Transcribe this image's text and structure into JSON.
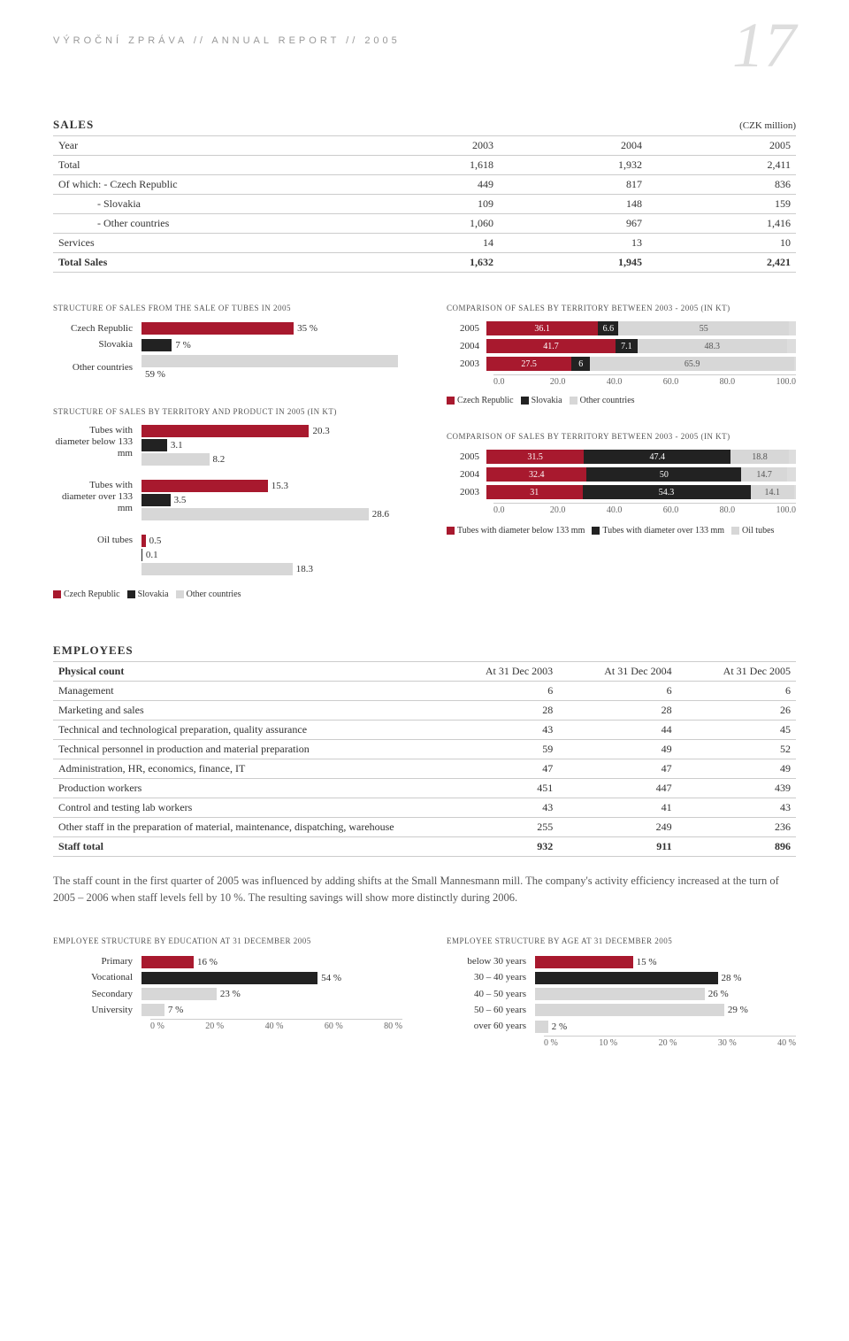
{
  "head": {
    "running": "VÝROČNÍ ZPRÁVA // ANNUAL REPORT // 2005",
    "page": "17"
  },
  "colors": {
    "red": "#a8192e",
    "black": "#222222",
    "grey": "#d7d7d7",
    "axis": "#cccccc"
  },
  "sales_table": {
    "title": "SALES",
    "unit": "(CZK million)",
    "head": [
      "Year",
      "2003",
      "2004",
      "2005"
    ],
    "rows": [
      {
        "label": "Total",
        "v": [
          "1,618",
          "1,932",
          "2,411"
        ],
        "bold": false
      },
      {
        "label": "Of which:  - Czech Republic",
        "v": [
          "449",
          "817",
          "836"
        ],
        "bold": false
      },
      {
        "label": "- Slovakia",
        "v": [
          "109",
          "148",
          "159"
        ],
        "bold": false,
        "indent": true
      },
      {
        "label": "- Other countries",
        "v": [
          "1,060",
          "967",
          "1,416"
        ],
        "bold": false,
        "indent": true
      },
      {
        "label": "Services",
        "v": [
          "14",
          "13",
          "10"
        ],
        "bold": false
      },
      {
        "label": "Total Sales",
        "v": [
          "1,632",
          "1,945",
          "2,421"
        ],
        "bold": true
      }
    ]
  },
  "chart1": {
    "title": "STRUCTURE OF SALES FROM THE SALE OF TUBES IN 2005",
    "rows": [
      {
        "label": "Czech Republic",
        "value": 35,
        "text": "35 %",
        "color": "#a8192e"
      },
      {
        "label": "Slovakia",
        "value": 7,
        "text": "7 %",
        "color": "#222222"
      },
      {
        "label": "Other countries",
        "value": 59,
        "text": "59 %",
        "color": "#d7d7d7"
      }
    ],
    "max": 60
  },
  "chart2": {
    "title": "STRUCTURE OF SALES BY TERRITORY AND PRODUCT IN 2005 (IN KT)",
    "groups": [
      {
        "label": "Tubes with diameter below 133 mm",
        "bars": [
          {
            "value": 20.3,
            "text": "20.3",
            "color": "#a8192e"
          },
          {
            "value": 3.1,
            "text": "3.1",
            "color": "#222222"
          },
          {
            "value": 8.2,
            "text": "8.2",
            "color": "#d7d7d7"
          }
        ]
      },
      {
        "label": "Tubes with diameter over 133 mm",
        "bars": [
          {
            "value": 15.3,
            "text": "15.3",
            "color": "#a8192e"
          },
          {
            "value": 3.5,
            "text": "3.5",
            "color": "#222222"
          },
          {
            "value": 28.6,
            "text": "28.6",
            "color": "#d7d7d7"
          }
        ]
      },
      {
        "label": "Oil tubes",
        "bars": [
          {
            "value": 0.5,
            "text": "0.5",
            "color": "#a8192e"
          },
          {
            "value": 0.1,
            "text": "0.1",
            "color": "#222222"
          },
          {
            "value": 18.3,
            "text": "18.3",
            "color": "#d7d7d7"
          }
        ]
      }
    ],
    "max": 30,
    "legend": [
      {
        "color": "#a8192e",
        "label": "Czech Republic"
      },
      {
        "color": "#222222",
        "label": "Slovakia"
      },
      {
        "color": "#d7d7d7",
        "label": "Other countries"
      }
    ]
  },
  "chart3": {
    "title": "COMPARISON OF SALES BY TERRITORY BETWEEN 2003 - 2005 (IN KT)",
    "rows": [
      {
        "label": "2005",
        "segs": [
          {
            "v": 36.1,
            "t": "36.1",
            "c": "#a8192e"
          },
          {
            "v": 6.6,
            "t": "6.6",
            "c": "#222222"
          },
          {
            "v": 55,
            "t": "55",
            "c": "#d7d7d7",
            "light": true
          }
        ]
      },
      {
        "label": "2004",
        "segs": [
          {
            "v": 41.7,
            "t": "41.7",
            "c": "#a8192e"
          },
          {
            "v": 7.1,
            "t": "7.1",
            "c": "#222222"
          },
          {
            "v": 48.3,
            "t": "48.3",
            "c": "#d7d7d7",
            "light": true
          }
        ]
      },
      {
        "label": "2003",
        "segs": [
          {
            "v": 27.5,
            "t": "27.5",
            "c": "#a8192e"
          },
          {
            "v": 6,
            "t": "6",
            "c": "#222222"
          },
          {
            "v": 65.9,
            "t": "65.9",
            "c": "#d7d7d7",
            "light": true
          }
        ]
      }
    ],
    "axis": [
      "0.0",
      "20.0",
      "40.0",
      "60.0",
      "80.0",
      "100.0"
    ],
    "max": 100,
    "legend": [
      {
        "color": "#a8192e",
        "label": "Czech Republic"
      },
      {
        "color": "#222222",
        "label": "Slovakia"
      },
      {
        "color": "#d7d7d7",
        "label": "Other countries"
      }
    ]
  },
  "chart4": {
    "title": "COMPARISON OF SALES BY TERRITORY BETWEEN 2003 - 2005 (IN KT)",
    "rows": [
      {
        "label": "2005",
        "segs": [
          {
            "v": 31.5,
            "t": "31.5",
            "c": "#a8192e"
          },
          {
            "v": 47.4,
            "t": "47.4",
            "c": "#222222"
          },
          {
            "v": 18.8,
            "t": "18.8",
            "c": "#d7d7d7",
            "light": true
          }
        ]
      },
      {
        "label": "2004",
        "segs": [
          {
            "v": 32.4,
            "t": "32.4",
            "c": "#a8192e"
          },
          {
            "v": 50,
            "t": "50",
            "c": "#222222"
          },
          {
            "v": 14.7,
            "t": "14.7",
            "c": "#d7d7d7",
            "light": true
          }
        ]
      },
      {
        "label": "2003",
        "segs": [
          {
            "v": 31,
            "t": "31",
            "c": "#a8192e"
          },
          {
            "v": 54.3,
            "t": "54.3",
            "c": "#222222"
          },
          {
            "v": 14.1,
            "t": "14.1",
            "c": "#d7d7d7",
            "light": true
          }
        ]
      }
    ],
    "axis": [
      "0.0",
      "20.0",
      "40.0",
      "60.0",
      "80.0",
      "100.0"
    ],
    "max": 100,
    "legend": [
      {
        "color": "#a8192e",
        "label": "Tubes with diameter below 133 mm"
      },
      {
        "color": "#222222",
        "label": "Tubes with diameter over 133 mm"
      },
      {
        "color": "#d7d7d7",
        "label": "Oil tubes"
      }
    ]
  },
  "employees_table": {
    "title": "EMPLOYEES",
    "head": [
      "Physical count",
      "At 31 Dec 2003",
      "At 31 Dec 2004",
      "At 31 Dec 2005"
    ],
    "rows": [
      {
        "label": "Management",
        "v": [
          "6",
          "6",
          "6"
        ]
      },
      {
        "label": "Marketing and sales",
        "v": [
          "28",
          "28",
          "26"
        ]
      },
      {
        "label": "Technical and technological preparation, quality assurance",
        "v": [
          "43",
          "44",
          "45"
        ]
      },
      {
        "label": "Technical personnel in production and material preparation",
        "v": [
          "59",
          "49",
          "52"
        ]
      },
      {
        "label": "Administration, HR, economics, finance, IT",
        "v": [
          "47",
          "47",
          "49"
        ]
      },
      {
        "label": "Production workers",
        "v": [
          "451",
          "447",
          "439"
        ]
      },
      {
        "label": "Control and testing lab workers",
        "v": [
          "43",
          "41",
          "43"
        ]
      },
      {
        "label": "Other staff in the preparation of material, maintenance, dispatching, warehouse",
        "v": [
          "255",
          "249",
          "236"
        ]
      },
      {
        "label": "Staff total",
        "v": [
          "932",
          "911",
          "896"
        ],
        "bold": true
      }
    ]
  },
  "body_text": "The staff count in the first quarter of 2005 was influenced by adding shifts at the Small Mannesmann mill. The company's activity efficiency increased at the turn of 2005 – 2006 when staff levels fell by 10 %. The resulting savings will show more distinctly during 2006.",
  "chart5": {
    "title": "EMPLOYEE STRUCTURE BY EDUCATION AT 31 DECEMBER 2005",
    "rows": [
      {
        "label": "Primary",
        "value": 16,
        "text": "16 %",
        "color": "#a8192e"
      },
      {
        "label": "Vocational",
        "value": 54,
        "text": "54 %",
        "color": "#222222"
      },
      {
        "label": "Secondary",
        "value": 23,
        "text": "23 %",
        "color": "#d7d7d7"
      },
      {
        "label": "University",
        "value": 7,
        "text": "7 %",
        "color": "#d7d7d7"
      }
    ],
    "max": 80,
    "axis": [
      "0 %",
      "20 %",
      "40 %",
      "60 %",
      "80 %"
    ]
  },
  "chart6": {
    "title": "EMPLOYEE STRUCTURE BY AGE AT 31 DECEMBER 2005",
    "rows": [
      {
        "label": "below 30 years",
        "value": 15,
        "text": "15 %",
        "color": "#a8192e"
      },
      {
        "label": "30 – 40 years",
        "value": 28,
        "text": "28 %",
        "color": "#222222"
      },
      {
        "label": "40 – 50 years",
        "value": 26,
        "text": "26 %",
        "color": "#d7d7d7"
      },
      {
        "label": "50 – 60 years",
        "value": 29,
        "text": "29 %",
        "color": "#d7d7d7"
      },
      {
        "label": "over 60 years",
        "value": 2,
        "text": "2 %",
        "color": "#d7d7d7"
      }
    ],
    "max": 40,
    "axis": [
      "0 %",
      "10 %",
      "20 %",
      "30 %",
      "40 %"
    ]
  }
}
